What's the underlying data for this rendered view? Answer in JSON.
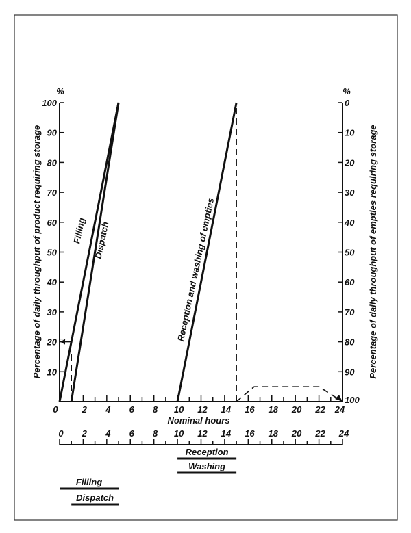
{
  "chart_data": {
    "type": "line",
    "xlabel": "Nominal hours",
    "ylabel_left": "Percentage of daily throughput of product requiring storage",
    "ylabel_right": "Percentage of daily throughput of empties requiring storage",
    "unit_left": "%",
    "unit_right": "%",
    "xlim": [
      0,
      24
    ],
    "ylim": [
      0,
      100
    ],
    "right_axis_inverted": true,
    "x_ticks": [
      "0",
      "2",
      "4",
      "6",
      "8",
      "10",
      "12",
      "14",
      "16",
      "18",
      "20",
      "22",
      "24"
    ],
    "x_ticks_second_scale": [
      "0",
      "2",
      "4",
      "6",
      "8",
      "10",
      "12",
      "14",
      "16",
      "18",
      "20",
      "22",
      "24"
    ],
    "y_ticks_left": [
      "0",
      "10",
      "20",
      "30",
      "40",
      "50",
      "60",
      "70",
      "80",
      "90",
      "100"
    ],
    "y_ticks_right": [
      "0",
      "10",
      "20",
      "30",
      "40",
      "50",
      "60",
      "70",
      "80",
      "90",
      "100"
    ],
    "grid": false,
    "series": [
      {
        "name": "Filling",
        "style": "solid",
        "x": [
          0,
          5
        ],
        "y": [
          0,
          100
        ]
      },
      {
        "name": "Dispatch",
        "style": "solid",
        "x": [
          1,
          5
        ],
        "y": [
          0,
          100
        ]
      },
      {
        "name": "Reception and washing of empties",
        "style": "solid",
        "x": [
          10,
          15
        ],
        "y": [
          0,
          100
        ]
      },
      {
        "style": "dashed",
        "x": [
          15,
          15
        ],
        "y": [
          0,
          100
        ]
      },
      {
        "style": "dashed",
        "x": [
          15,
          16.5,
          22,
          24
        ],
        "y": [
          0,
          5,
          5,
          0
        ]
      },
      {
        "style": "dashed",
        "x": [
          1,
          1
        ],
        "y": [
          0,
          17
        ]
      }
    ],
    "marker_arrow_at_percent": 20,
    "schedule_bars": [
      {
        "name": "Reception",
        "start": 10,
        "end": 15
      },
      {
        "name": "Washing",
        "start": 10,
        "end": 15
      },
      {
        "name": "Filling",
        "start": 0,
        "end": 5
      },
      {
        "name": "Dispatch",
        "start": 1,
        "end": 5
      }
    ],
    "colors": {
      "ink": "#111111",
      "paper": "#ffffff"
    }
  }
}
